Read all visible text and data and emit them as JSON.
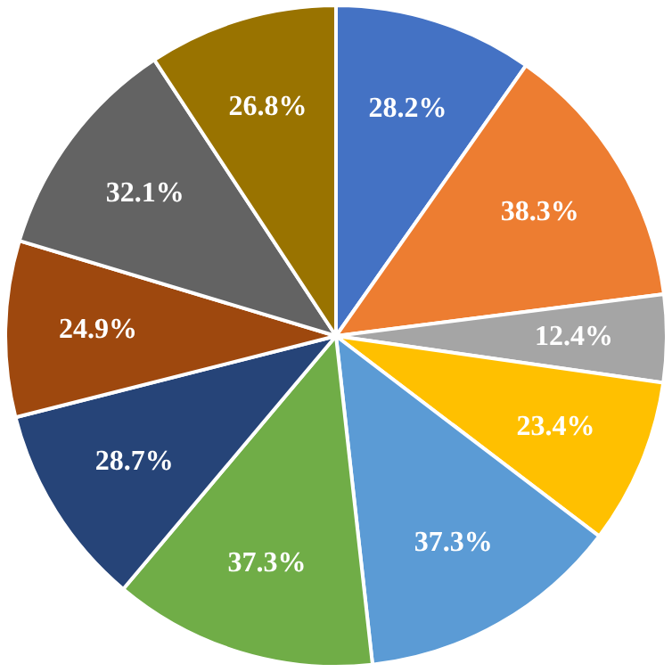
{
  "chart_data": {
    "type": "pie",
    "categories": [
      null,
      null,
      null,
      null,
      null,
      null,
      null,
      null,
      null,
      null
    ],
    "values": [
      28.2,
      38.3,
      12.4,
      23.4,
      37.3,
      37.3,
      28.7,
      24.9,
      32.1,
      26.8
    ],
    "value_labels": [
      "28.2%",
      "38.3%",
      "12.4%",
      "23.4%",
      "37.3%",
      "37.3%",
      "28.7%",
      "24.9%",
      "32.1%",
      "26.8%"
    ],
    "colors": [
      "#4472c4",
      "#ed7d31",
      "#a5a5a5",
      "#ffc000",
      "#5b9bd5",
      "#70ad47",
      "#264478",
      "#9e480e",
      "#636363",
      "#997300"
    ],
    "legend": false
  }
}
